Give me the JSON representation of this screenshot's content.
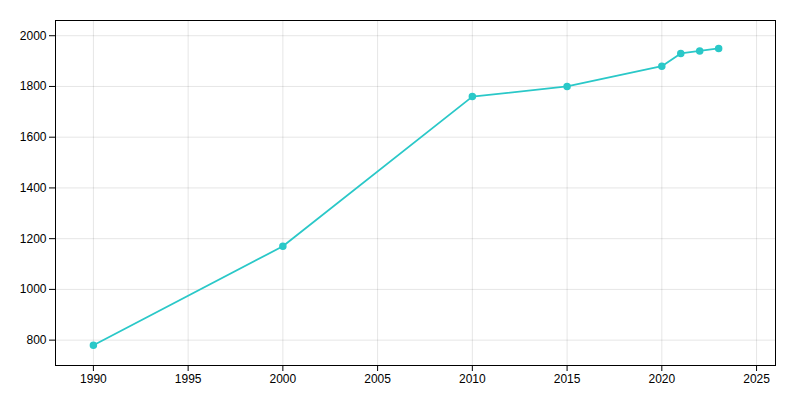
{
  "chart_data": {
    "type": "line",
    "x": [
      1990,
      2000,
      2010,
      2015,
      2020,
      2021,
      2022,
      2023
    ],
    "values": [
      780,
      1170,
      1760,
      1800,
      1880,
      1930,
      1940,
      1950
    ],
    "color": "#2ac8c8",
    "marker": "o",
    "xlim": [
      1988,
      2026
    ],
    "ylim": [
      700,
      2060
    ],
    "xticks": [
      1990,
      1995,
      2000,
      2005,
      2010,
      2015,
      2020,
      2025
    ],
    "yticks": [
      800,
      1000,
      1200,
      1400,
      1600,
      1800,
      2000
    ],
    "grid": true
  }
}
